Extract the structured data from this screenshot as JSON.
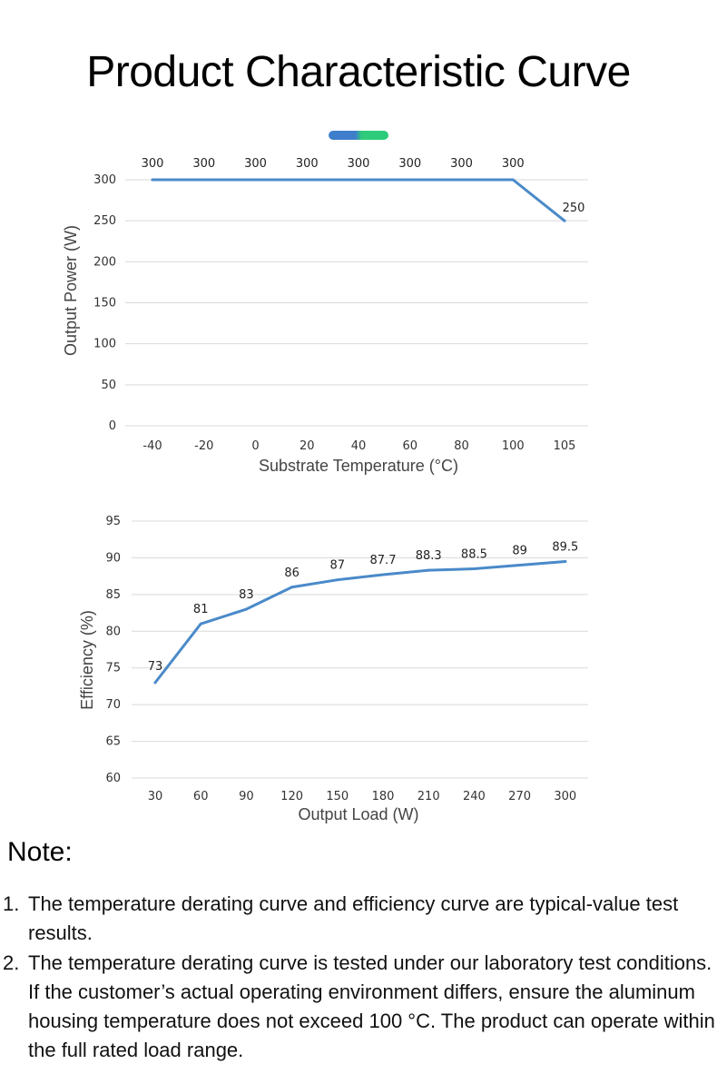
{
  "page": {
    "title": "Product Characteristic Curve",
    "note_heading": "Note:",
    "notes": [
      {
        "num": "1.",
        "text": "The temperature derating curve and efficiency curve are typical-value test results."
      },
      {
        "num": "2.",
        "text": "The temperature derating curve is tested under our laboratory test conditions. If the customer’s actual operating environment differs, ensure the aluminum housing temperature does not exceed 100 °C. The product can operate within the full rated load range."
      }
    ],
    "colors": {
      "line": "#4a8ac9",
      "accent_blue": "#3f7ecb",
      "accent_green": "#2ecb7a",
      "grid": "#d9d9d9"
    }
  },
  "chart_data": [
    {
      "type": "line",
      "title": "",
      "xlabel": "Substrate Temperature (°C)",
      "ylabel": "Output Power (W)",
      "categories": [
        "-40",
        "-20",
        "0",
        "20",
        "40",
        "60",
        "80",
        "100",
        "105"
      ],
      "series": [
        {
          "values": [
            300,
            300,
            300,
            300,
            300,
            300,
            300,
            300,
            250
          ],
          "labels": [
            "300",
            "300",
            "300",
            "300",
            "300",
            "300",
            "300",
            "300",
            "250"
          ]
        }
      ],
      "ylim": [
        0,
        300
      ],
      "yticks": [
        "0",
        "50",
        "100",
        "150",
        "200",
        "250",
        "300"
      ],
      "grid": true,
      "legend": "none"
    },
    {
      "type": "line",
      "title": "",
      "xlabel": "Output Load (W)",
      "ylabel": "Efficiency (%)",
      "categories": [
        "30",
        "60",
        "90",
        "120",
        "150",
        "180",
        "210",
        "240",
        "270",
        "300"
      ],
      "series": [
        {
          "values": [
            73,
            81,
            83,
            86,
            87,
            87.7,
            88.3,
            88.5,
            89,
            89.5
          ],
          "labels": [
            "73",
            "81",
            "83",
            "86",
            "87",
            "87.7",
            "88.3",
            "88.5",
            "89",
            "89.5"
          ]
        }
      ],
      "ylim": [
        60,
        95
      ],
      "yticks": [
        "60",
        "65",
        "70",
        "75",
        "80",
        "85",
        "90",
        "95"
      ],
      "grid": true,
      "legend": "none"
    }
  ]
}
